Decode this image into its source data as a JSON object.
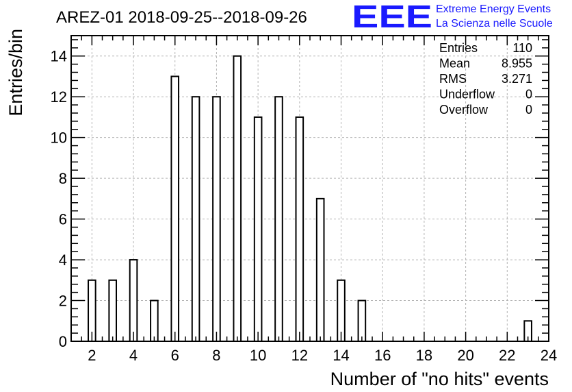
{
  "chart_data": {
    "type": "bar",
    "title": "AREZ-01 2018-09-25--2018-09-26",
    "xlabel": "Number of \"no hits\" events",
    "ylabel": "Entries/bin",
    "xlim": [
      1,
      24
    ],
    "ylim": [
      0,
      15
    ],
    "x_ticks": [
      "2",
      "4",
      "6",
      "8",
      "10",
      "12",
      "14",
      "16",
      "18",
      "20",
      "22",
      "24"
    ],
    "y_ticks": [
      "0",
      "2",
      "4",
      "6",
      "8",
      "10",
      "12",
      "14"
    ],
    "grid": true,
    "bin_width": 0.35,
    "bins": [
      {
        "x": 2,
        "y": 3
      },
      {
        "x": 3,
        "y": 3
      },
      {
        "x": 4,
        "y": 4
      },
      {
        "x": 5,
        "y": 2
      },
      {
        "x": 6,
        "y": 13
      },
      {
        "x": 7,
        "y": 12
      },
      {
        "x": 8,
        "y": 12
      },
      {
        "x": 9,
        "y": 14
      },
      {
        "x": 10,
        "y": 11
      },
      {
        "x": 11,
        "y": 12
      },
      {
        "x": 12,
        "y": 11
      },
      {
        "x": 13,
        "y": 7
      },
      {
        "x": 14,
        "y": 3
      },
      {
        "x": 15,
        "y": 2
      },
      {
        "x": 23,
        "y": 1
      }
    ],
    "stats": [
      {
        "label": "Entries",
        "value": "110"
      },
      {
        "label": "Mean",
        "value": "8.955"
      },
      {
        "label": "RMS",
        "value": "3.271"
      },
      {
        "label": "Underflow",
        "value": "0"
      },
      {
        "label": "Overflow",
        "value": "0"
      }
    ],
    "logo": {
      "mark": "EEE",
      "line1": "Extreme Energy Events",
      "line2": "La Scienza nelle Scuole",
      "color": "#1a1aff"
    },
    "line_color": "#000000",
    "grid_color": "#b4b4b4"
  }
}
